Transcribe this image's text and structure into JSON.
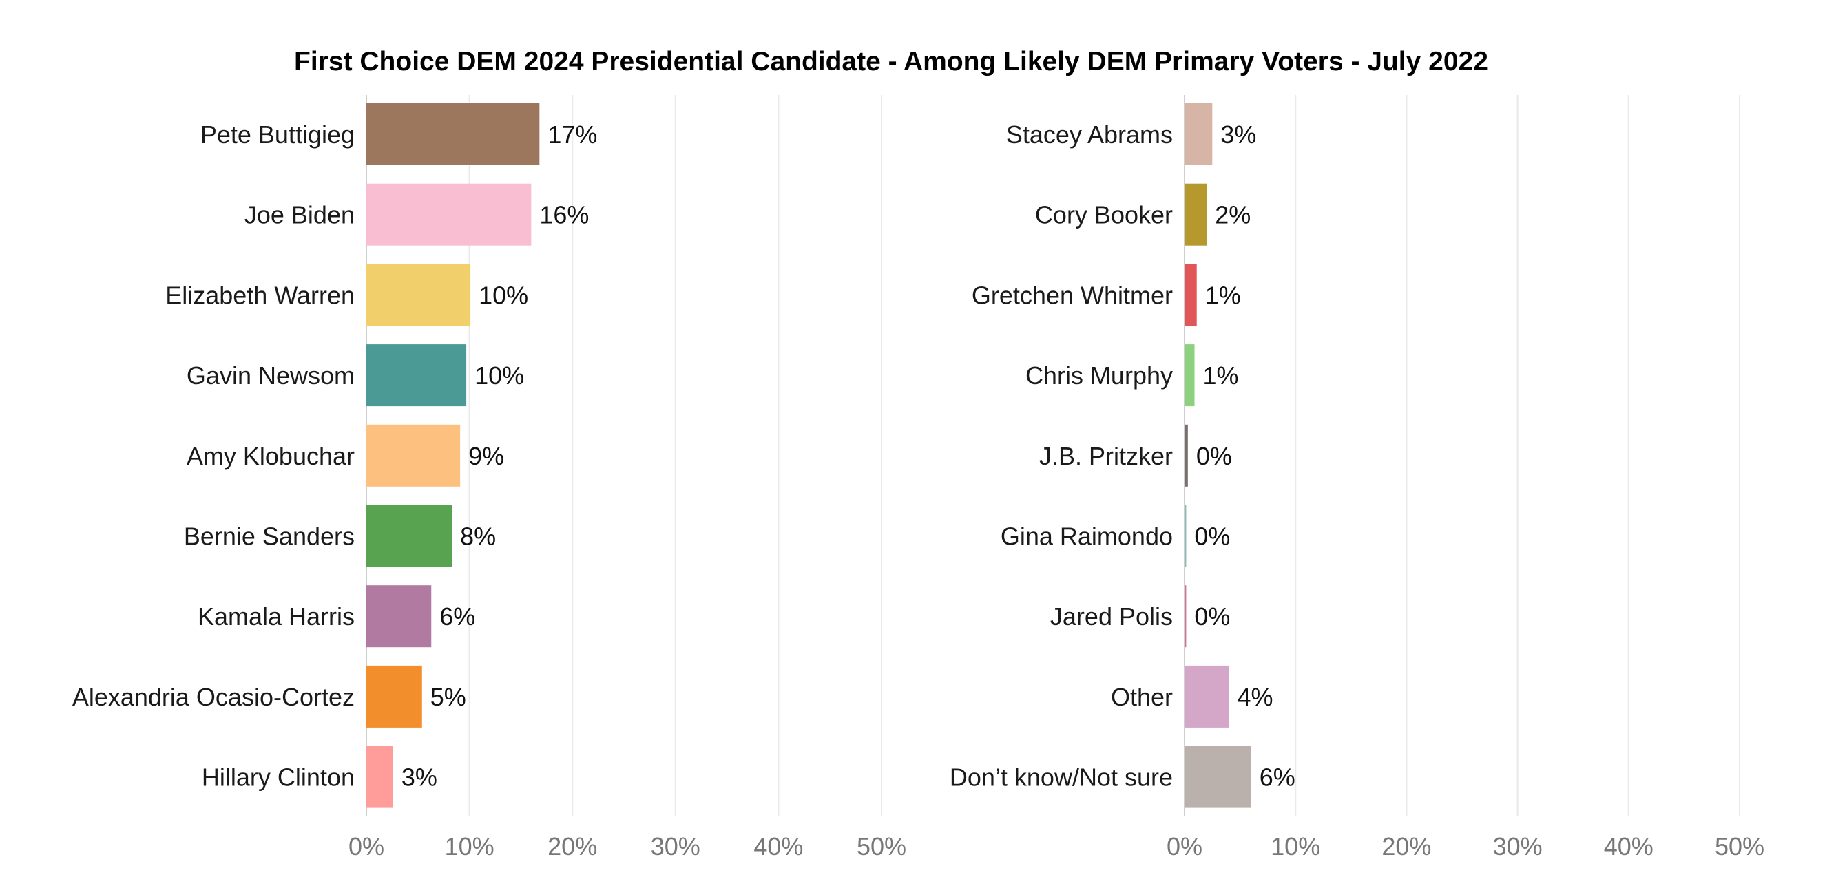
{
  "chart_data": {
    "type": "bar",
    "orientation": "horizontal",
    "title": "First Choice DEM 2024 Presidential Candidate - Among Likely DEM Primary Voters - July 2022",
    "xlim": [
      0,
      50
    ],
    "ticks": [
      "0%",
      "10%",
      "20%",
      "30%",
      "40%",
      "50%"
    ],
    "tick_values": [
      0,
      10,
      20,
      30,
      40,
      50
    ],
    "grid": true,
    "panels": [
      {
        "categories": [
          "Pete Buttigieg",
          "Joe Biden",
          "Elizabeth Warren",
          "Gavin Newsom",
          "Amy Klobuchar",
          "Bernie Sanders",
          "Kamala Harris",
          "Alexandria Ocasio-Cortez",
          "Hillary Clinton"
        ],
        "values": [
          16.8,
          16.0,
          10.1,
          9.7,
          9.1,
          8.3,
          6.3,
          5.4,
          2.6
        ],
        "value_labels": [
          "17%",
          "16%",
          "10%",
          "10%",
          "9%",
          "8%",
          "6%",
          "5%",
          "3%"
        ],
        "colors": [
          "#9c775e",
          "#f9bed2",
          "#f1cf6a",
          "#4b9a95",
          "#fec07e",
          "#58a34f",
          "#b07aa1",
          "#f28e2b",
          "#ff9d9a"
        ]
      },
      {
        "categories": [
          "Stacey Abrams",
          "Cory Booker",
          "Gretchen Whitmer",
          "Chris Murphy",
          "J.B. Pritzker",
          "Gina Raimondo",
          "Jared Polis",
          "Other",
          "Don’t know/Not sure"
        ],
        "values": [
          2.5,
          2.0,
          1.1,
          0.9,
          0.3,
          0.15,
          0.15,
          4.0,
          6.0
        ],
        "value_labels": [
          "3%",
          "2%",
          "1%",
          "1%",
          "0%",
          "0%",
          "0%",
          "4%",
          "6%"
        ],
        "colors": [
          "#d7b5a6",
          "#b6992d",
          "#e15759",
          "#8cd17d",
          "#79706e",
          "#86bcb6",
          "#d37295",
          "#d4a6c8",
          "#bab0ac"
        ]
      }
    ]
  }
}
